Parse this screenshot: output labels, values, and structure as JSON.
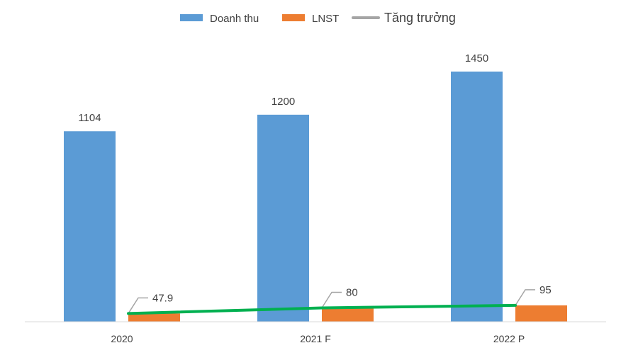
{
  "chart_data": {
    "type": "bar",
    "categories": [
      "2020",
      "2021 F",
      "2022 P"
    ],
    "series": [
      {
        "name": "Doanh thu",
        "kind": "bar",
        "color": "#5B9BD5",
        "values": [
          1104,
          1200,
          1450
        ]
      },
      {
        "name": "LNST",
        "kind": "bar",
        "color": "#ED7D31",
        "values": [
          47.9,
          80,
          95
        ]
      },
      {
        "name": "Tăng trưởng",
        "kind": "line",
        "color": "#00B050",
        "legend_color": "#A5A5A5",
        "values": [
          47.9,
          80,
          95
        ]
      }
    ],
    "data_labels": {
      "Doanh thu": [
        "1104",
        "1200",
        "1450"
      ],
      "LNST": [
        "47.9",
        "80",
        "95"
      ]
    },
    "ylim": [
      0,
      1450
    ],
    "grid": false,
    "legend_position": "top",
    "title": "",
    "xlabel": "",
    "ylabel": ""
  }
}
